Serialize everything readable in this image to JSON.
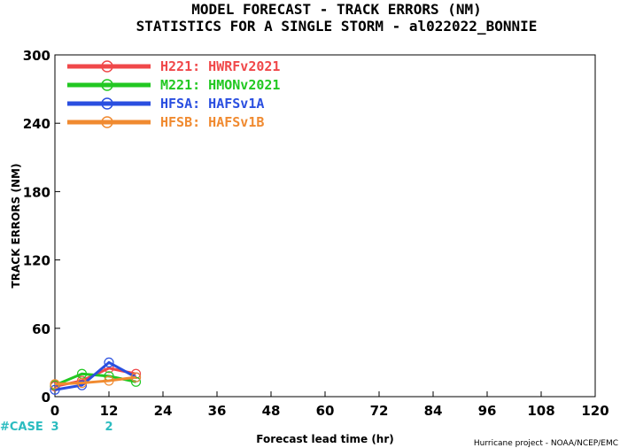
{
  "chart_data": {
    "type": "line",
    "title": "MODEL FORECAST - TRACK ERRORS (NM)",
    "subtitle": "STATISTICS FOR A SINGLE STORM - al022022_BONNIE",
    "xlabel": "Forecast lead time (hr)",
    "ylabel": "TRACK ERRORS (NM)",
    "xlim": [
      0,
      120
    ],
    "ylim": [
      0,
      300
    ],
    "x_ticks": [
      0,
      12,
      24,
      36,
      48,
      60,
      72,
      84,
      96,
      108,
      120
    ],
    "y_ticks": [
      0,
      60,
      120,
      180,
      240,
      300
    ],
    "grid": false,
    "legend_position": "top-left",
    "series": [
      {
        "name": "H221: HWRFv2021",
        "color": "#f0484a",
        "x": [
          0,
          6,
          12,
          18
        ],
        "y": [
          9,
          14,
          25,
          20
        ]
      },
      {
        "name": "M221: HMONv2021",
        "color": "#22c822",
        "x": [
          0,
          6,
          12,
          18
        ],
        "y": [
          10,
          20,
          18,
          13
        ]
      },
      {
        "name": "HFSA: HAFSv1A",
        "color": "#2a4fe0",
        "x": [
          0,
          6,
          12,
          18
        ],
        "y": [
          6,
          10,
          30,
          17
        ]
      },
      {
        "name": "HFSB: HAFSv1B",
        "color": "#f08a30",
        "x": [
          0,
          6,
          12,
          18
        ],
        "y": [
          11,
          12,
          14,
          17
        ]
      }
    ],
    "case_counts": {
      "label": "#CASE",
      "entries": [
        {
          "x": 0,
          "count": "3"
        },
        {
          "x": 12,
          "count": "2"
        }
      ]
    },
    "credit": "Hurricane project - NOAA/NCEP/EMC"
  }
}
